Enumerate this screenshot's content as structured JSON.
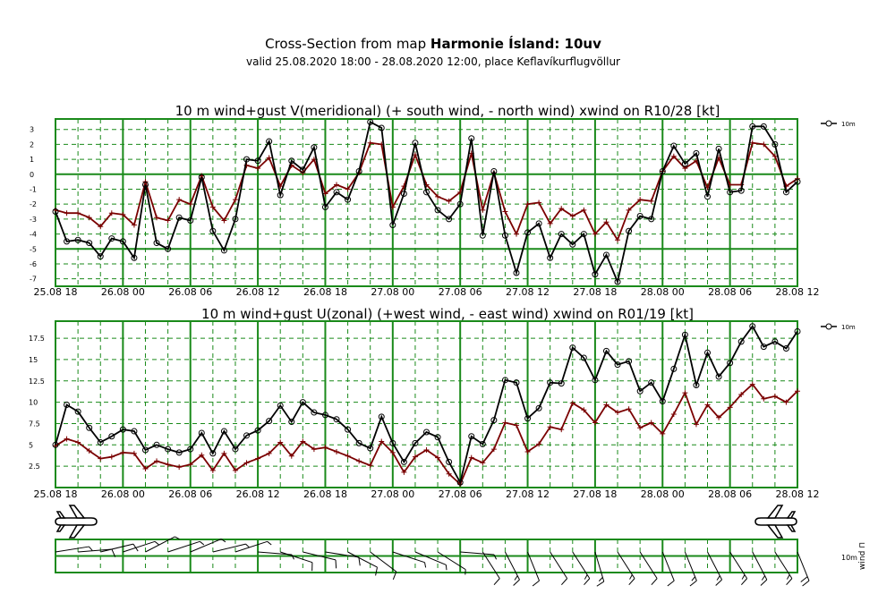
{
  "header": {
    "title_prefix": "Cross-Section from map ",
    "title_bold": "Harmonie Ísland: 10uv",
    "subtitle": "valid 25.08.2020 18:00 - 28.08.2020 12:00, place Keflavíkurflugvöllur"
  },
  "x_tick_labels": [
    "25.08 18",
    "26.08 00",
    "26.08 06",
    "26.08 12",
    "26.08 18",
    "27.08 00",
    "27.08 06",
    "27.08 12",
    "27.08 18",
    "28.08 00",
    "28.08 06",
    "28.08 12"
  ],
  "legend_label": "10m",
  "wind_panel": {
    "label_10m": "10m",
    "label_wind": "wind ⊓"
  },
  "colors": {
    "grid": "#1a8a1a",
    "wind": "#000000",
    "gust": "#7a0000",
    "background": "#ffffff"
  },
  "chart_data": [
    {
      "type": "line",
      "title": "10 m wind+gust V(meridional) (+ south wind, - north wind) xwind on R10/28 [kt]",
      "x_unit": "hours from 25.08 18",
      "x": [
        0,
        1,
        2,
        3,
        4,
        5,
        6,
        7,
        8,
        9,
        10,
        11,
        12,
        13,
        14,
        15,
        16,
        17,
        18,
        19,
        20,
        21,
        22,
        23,
        24,
        25,
        26,
        27,
        28,
        29,
        30,
        31,
        32,
        33,
        34,
        35,
        36,
        37,
        38,
        39,
        40,
        41,
        42,
        43,
        44,
        45,
        46,
        47,
        48,
        49,
        50,
        51,
        52,
        53,
        54,
        55,
        56,
        57,
        58,
        59,
        60,
        61,
        62,
        63,
        64,
        65,
        66
      ],
      "ylim": [
        -7.5,
        3.7
      ],
      "yticks": [
        -7,
        -6,
        -5,
        -4,
        -3,
        -2,
        -1,
        0,
        1,
        2,
        3
      ],
      "series": [
        {
          "name": "10m",
          "values": [
            -2.5,
            -4.5,
            -4.4,
            -4.6,
            -5.5,
            -4.3,
            -4.5,
            -5.6,
            -0.7,
            -4.6,
            -5,
            -2.9,
            -3.1,
            -0.2,
            -3.8,
            -5.1,
            -3,
            1,
            0.9,
            2.2,
            -1.4,
            0.9,
            0.3,
            1.8,
            -2.2,
            -1.2,
            -1.7,
            0.2,
            3.5,
            3.1,
            -3.4,
            -1.3,
            2.1,
            -1.2,
            -2.4,
            -3,
            -2,
            2.4,
            -4.1,
            0.2,
            -4.1,
            -6.6,
            -3.9,
            -3.3,
            -5.6,
            -4,
            -4.7,
            -4,
            -6.7,
            -5.4,
            -7.2,
            -3.8,
            -2.8,
            -3,
            0.2,
            1.9,
            0.7,
            1.4,
            -1.5,
            1.7,
            -1.2,
            -1.1,
            3.2,
            3.2,
            2,
            -1.2,
            -0.5
          ]
        },
        {
          "name": "gust",
          "values": [
            -2.4,
            -2.6,
            -2.6,
            -2.9,
            -3.5,
            -2.6,
            -2.7,
            -3.4,
            -0.5,
            -2.9,
            -3.1,
            -1.7,
            -2,
            -0.1,
            -2.2,
            -3.1,
            -1.7,
            0.6,
            0.4,
            1.1,
            -0.8,
            0.6,
            0.1,
            1,
            -1.3,
            -0.7,
            -1,
            0.1,
            2.1,
            2,
            -2.2,
            -0.8,
            1.3,
            -0.7,
            -1.5,
            -1.8,
            -1.2,
            1.4,
            -2.4,
            0.1,
            -2.5,
            -4,
            -2,
            -1.9,
            -3.3,
            -2.3,
            -2.8,
            -2.4,
            -4,
            -3.2,
            -4.4,
            -2.4,
            -1.7,
            -1.8,
            0.2,
            1.2,
            0.4,
            0.9,
            -0.9,
            1.1,
            -0.7,
            -0.7,
            2.1,
            2,
            1.2,
            -0.8,
            -0.3
          ]
        }
      ],
      "legend": "top-right",
      "grid": true
    },
    {
      "type": "line",
      "title": "10 m wind+gust U(zonal) (+west wind, - east wind) xwind on R01/19 [kt]",
      "x_unit": "hours from 25.08 18",
      "x": [
        0,
        1,
        2,
        3,
        4,
        5,
        6,
        7,
        8,
        9,
        10,
        11,
        12,
        13,
        14,
        15,
        16,
        17,
        18,
        19,
        20,
        21,
        22,
        23,
        24,
        25,
        26,
        27,
        28,
        29,
        30,
        31,
        32,
        33,
        34,
        35,
        36,
        37,
        38,
        39,
        40,
        41,
        42,
        43,
        44,
        45,
        46,
        47,
        48,
        49,
        50,
        51,
        52,
        53,
        54,
        55,
        56,
        57,
        58,
        59,
        60,
        61,
        62,
        63,
        64,
        65,
        66
      ],
      "ylim": [
        0,
        19.5
      ],
      "yticks": [
        2.5,
        5,
        7.5,
        10,
        12.5,
        15,
        17.5
      ],
      "series": [
        {
          "name": "10m",
          "values": [
            5,
            9.7,
            8.9,
            7,
            5.3,
            6,
            6.8,
            6.6,
            4.4,
            5,
            4.5,
            4.1,
            4.5,
            6.4,
            4,
            6.6,
            4.5,
            6.1,
            6.7,
            7.8,
            9.6,
            7.7,
            10,
            8.8,
            8.5,
            8,
            6.8,
            5.2,
            4.6,
            8.3,
            5.2,
            3,
            5.2,
            6.5,
            5.9,
            3,
            0.6,
            6,
            5.1,
            7.9,
            12.6,
            12.3,
            8.1,
            9.3,
            12.3,
            12.2,
            16.4,
            15.2,
            12.6,
            16,
            14.4,
            14.8,
            11.3,
            12.3,
            10.1,
            13.9,
            17.9,
            12,
            15.8,
            13,
            14.6,
            17.1,
            18.9,
            16.5,
            17.1,
            16.3,
            18.3
          ]
        },
        {
          "name": "gust",
          "values": [
            4.9,
            5.7,
            5.3,
            4.3,
            3.4,
            3.6,
            4.1,
            4,
            2.2,
            3.1,
            2.7,
            2.4,
            2.7,
            3.8,
            2,
            4,
            2,
            2.9,
            3.4,
            4,
            5.3,
            3.7,
            5.4,
            4.5,
            4.7,
            4.2,
            3.7,
            3.1,
            2.6,
            5.4,
            4.1,
            1.8,
            3.6,
            4.4,
            3.5,
            1.6,
            0.4,
            3.5,
            2.9,
            4.5,
            7.6,
            7.3,
            4.2,
            5.1,
            7.1,
            6.8,
            9.9,
            9.1,
            7.6,
            9.7,
            8.8,
            9.2,
            7,
            7.6,
            6.3,
            8.6,
            11.1,
            7.4,
            9.7,
            8.2,
            9.4,
            10.9,
            12.1,
            10.4,
            10.7,
            10,
            11.3
          ]
        }
      ],
      "legend": "top-right",
      "grid": true
    },
    {
      "type": "barbs",
      "x_unit": "hours from 25.08 18",
      "barb_x": [
        0,
        2,
        4,
        6,
        8,
        10,
        12,
        14,
        16,
        18,
        20,
        22,
        24,
        26,
        28,
        30,
        32,
        34,
        36,
        38,
        40,
        42,
        44,
        46,
        48,
        50,
        52,
        54,
        56,
        58,
        60,
        62,
        64,
        66
      ],
      "direction_deg": [
        80,
        85,
        75,
        70,
        60,
        70,
        65,
        75,
        70,
        95,
        110,
        105,
        100,
        120,
        130,
        110,
        115,
        125,
        95,
        150,
        155,
        160,
        150,
        150,
        165,
        150,
        150,
        160,
        160,
        155,
        150,
        155,
        150,
        160
      ],
      "speed_kt": [
        5,
        9,
        8,
        7,
        5,
        6,
        6,
        6,
        4,
        7,
        9,
        8,
        10,
        8,
        8,
        7,
        5,
        6,
        3,
        8,
        13,
        10,
        12,
        15,
        14,
        14,
        11,
        12,
        13,
        14,
        17,
        17,
        17,
        18
      ],
      "runway_icons": [
        "left-airplane",
        "right-airplane"
      ]
    }
  ]
}
